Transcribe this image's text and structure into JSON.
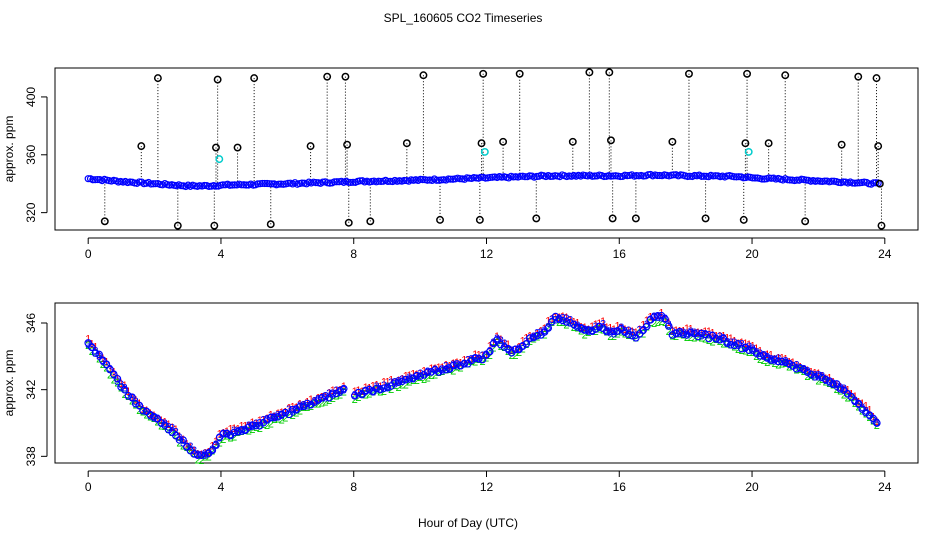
{
  "title": "SPL_160605  CO2 Timeseries",
  "xlabel": "Hour of Day (UTC)",
  "colors": {
    "c1": "#ff0000",
    "c2": "#00cc00",
    "c3": "#0000ff",
    "dots": "#0000ff",
    "outlier": "#000000",
    "cyan": "#00cccc",
    "axis": "#000000"
  },
  "chart_data": [
    {
      "type": "scatter",
      "name": "top-panel",
      "ylabel": "approx. ppm",
      "xlim": [
        -1,
        25
      ],
      "ylim": [
        308,
        420
      ],
      "xticks": [
        0,
        4,
        8,
        12,
        16,
        20,
        24
      ],
      "yticks": [
        320,
        360,
        400
      ],
      "baseline": [
        [
          0,
          343.5
        ],
        [
          1,
          341.5
        ],
        [
          2,
          340
        ],
        [
          3,
          338.5
        ],
        [
          3.6,
          338.5
        ],
        [
          4,
          339
        ],
        [
          6,
          340
        ],
        [
          8,
          341.5
        ],
        [
          10,
          342.5
        ],
        [
          12,
          344
        ],
        [
          14,
          345.5
        ],
        [
          16,
          345.5
        ],
        [
          17,
          346
        ],
        [
          18,
          345.5
        ],
        [
          19.5,
          345
        ],
        [
          20,
          344
        ],
        [
          21,
          343
        ],
        [
          22,
          342
        ],
        [
          23,
          341
        ],
        [
          23.8,
          340
        ]
      ],
      "outliers": [
        [
          0.5,
          314
        ],
        [
          1.6,
          366
        ],
        [
          2.1,
          413
        ],
        [
          2.7,
          311
        ],
        [
          3.8,
          311
        ],
        [
          3.85,
          365
        ],
        [
          3.9,
          412
        ],
        [
          4.5,
          365
        ],
        [
          5.0,
          413
        ],
        [
          5.5,
          312
        ],
        [
          6.7,
          366
        ],
        [
          7.2,
          414
        ],
        [
          7.75,
          414
        ],
        [
          7.8,
          367
        ],
        [
          7.85,
          313
        ],
        [
          8.5,
          314
        ],
        [
          9.6,
          368
        ],
        [
          10.1,
          415
        ],
        [
          10.6,
          315
        ],
        [
          11.8,
          315
        ],
        [
          11.85,
          368
        ],
        [
          11.9,
          416
        ],
        [
          12.5,
          369
        ],
        [
          13.0,
          416
        ],
        [
          13.5,
          316
        ],
        [
          14.6,
          369
        ],
        [
          15.1,
          417
        ],
        [
          15.7,
          417
        ],
        [
          15.75,
          370
        ],
        [
          15.8,
          316
        ],
        [
          16.5,
          316
        ],
        [
          17.6,
          369
        ],
        [
          18.1,
          416
        ],
        [
          18.6,
          316
        ],
        [
          19.75,
          315
        ],
        [
          19.8,
          368
        ],
        [
          19.85,
          416
        ],
        [
          20.5,
          368
        ],
        [
          21.0,
          415
        ],
        [
          21.6,
          314
        ],
        [
          22.7,
          367
        ],
        [
          23.2,
          414
        ],
        [
          23.75,
          413
        ],
        [
          23.8,
          366
        ],
        [
          23.85,
          340
        ],
        [
          23.9,
          311
        ]
      ],
      "cyan_points": [
        [
          3.95,
          357
        ],
        [
          11.95,
          362
        ],
        [
          19.9,
          362
        ]
      ]
    },
    {
      "type": "scatter",
      "name": "bottom-panel",
      "ylabel": "approx. ppm",
      "xlim": [
        -1,
        25
      ],
      "ylim": [
        337.6,
        347.2
      ],
      "xticks": [
        0,
        4,
        8,
        12,
        16,
        20,
        24
      ],
      "yticks": [
        338,
        342,
        346
      ],
      "series": [
        {
          "name": "1",
          "marker": "1",
          "color": "#ff0000",
          "offset": 0.6
        },
        {
          "name": "2",
          "marker": "2",
          "color": "#00cc00",
          "offset": -0.4
        },
        {
          "name": "3",
          "marker": "3",
          "color": "#0000ff",
          "offset": 0.2
        },
        {
          "name": "circles",
          "marker": "o",
          "color": "#0000ff",
          "offset": 0
        }
      ],
      "curve": [
        [
          0,
          344.8
        ],
        [
          0.5,
          343.6
        ],
        [
          1,
          342.2
        ],
        [
          1.5,
          341
        ],
        [
          2,
          340.3
        ],
        [
          2.5,
          339.6
        ],
        [
          3,
          338.6
        ],
        [
          3.3,
          338.0
        ],
        [
          3.6,
          338.1
        ],
        [
          3.8,
          338.6
        ],
        [
          4,
          339.2
        ],
        [
          5,
          339.8
        ],
        [
          6,
          340.6
        ],
        [
          7,
          341.4
        ],
        [
          7.7,
          342.0
        ],
        [
          8,
          341.7
        ],
        [
          9,
          342.2
        ],
        [
          10,
          342.8
        ],
        [
          11,
          343.4
        ],
        [
          12,
          344
        ],
        [
          12.3,
          345
        ],
        [
          12.8,
          344.2
        ],
        [
          13.3,
          345
        ],
        [
          13.8,
          345.6
        ],
        [
          14,
          346.3
        ],
        [
          14.5,
          346.1
        ],
        [
          15,
          345.5
        ],
        [
          15.5,
          345.8
        ],
        [
          15.8,
          345.3
        ],
        [
          16,
          345.7
        ],
        [
          16.5,
          345.2
        ],
        [
          17,
          346.2
        ],
        [
          17.3,
          346.4
        ],
        [
          17.6,
          345.4
        ],
        [
          18,
          345.4
        ],
        [
          19,
          345.1
        ],
        [
          19.5,
          344.7
        ],
        [
          20,
          344.4
        ],
        [
          20.5,
          343.8
        ],
        [
          21,
          343.7
        ],
        [
          21.5,
          343.2
        ],
        [
          22,
          342.8
        ],
        [
          22.5,
          342.3
        ],
        [
          23,
          341.6
        ],
        [
          23.5,
          340.6
        ],
        [
          23.8,
          339.8
        ]
      ]
    }
  ]
}
